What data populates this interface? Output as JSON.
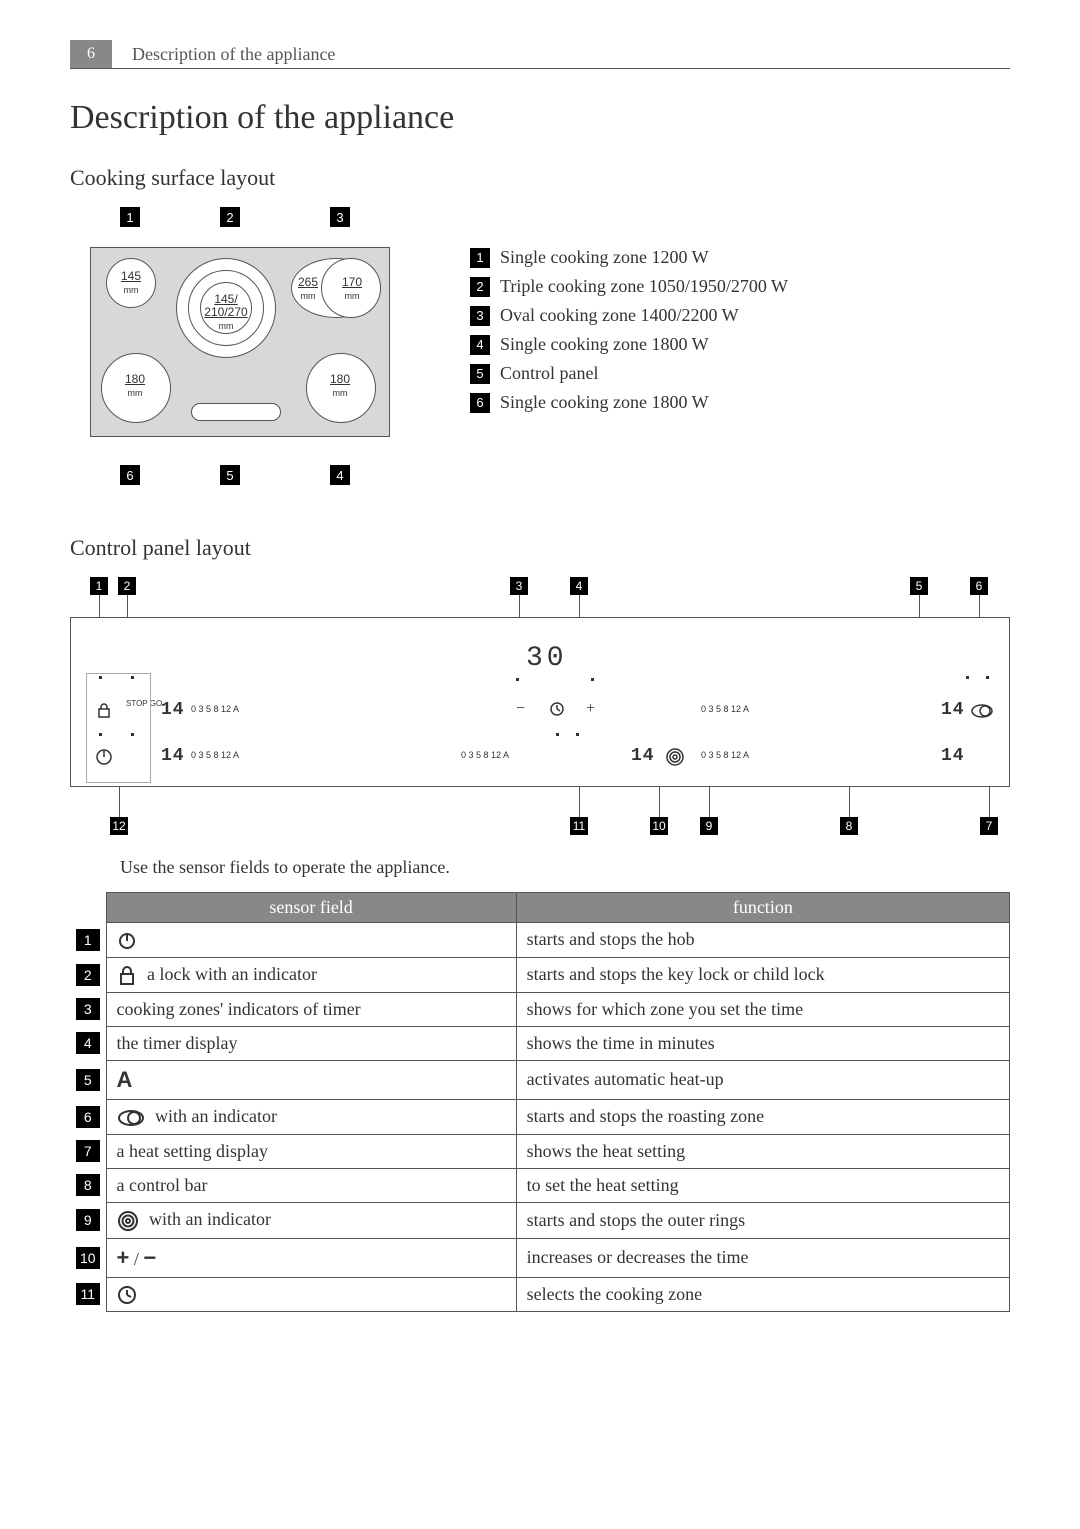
{
  "header": {
    "page_number": "6",
    "breadcrumb": "Description of the appliance"
  },
  "title": "Description of the appliance",
  "cooking_surface": {
    "heading": "Cooking surface layout",
    "zones": {
      "z1": {
        "dim": "145",
        "unit": "mm"
      },
      "z2": {
        "dim": "145/",
        "dim2": "210/270",
        "unit": "mm"
      },
      "z3a": {
        "dim": "265",
        "unit": "mm"
      },
      "z3b": {
        "dim": "170",
        "unit": "mm"
      },
      "z4": {
        "dim": "180",
        "unit": "mm"
      },
      "z6": {
        "dim": "180",
        "unit": "mm"
      }
    },
    "callouts": [
      "1",
      "2",
      "3",
      "4",
      "5",
      "6"
    ],
    "legend": [
      {
        "n": "1",
        "text": "Single cooking zone 1200 W"
      },
      {
        "n": "2",
        "text": "Triple cooking zone 1050/1950/2700 W"
      },
      {
        "n": "3",
        "text": "Oval cooking zone 1400/2200 W"
      },
      {
        "n": "4",
        "text": "Single cooking zone 1800 W"
      },
      {
        "n": "5",
        "text": "Control panel"
      },
      {
        "n": "6",
        "text": "Single cooking zone 1800 W"
      }
    ]
  },
  "control_panel": {
    "heading": "Control panel layout",
    "timer_display": "30",
    "scale": {
      "marks": "0   3   5     8        12    A"
    },
    "heat_display": "14",
    "stop_go": "STOP\nGO",
    "callouts_top": [
      "1",
      "2",
      "3",
      "4",
      "5",
      "6"
    ],
    "callouts_bottom": [
      "12",
      "11",
      "10",
      "9",
      "8",
      "7"
    ]
  },
  "instruction": "Use the sensor fields to operate the appliance.",
  "table": {
    "headers": {
      "sensor": "sensor field",
      "function": "function"
    },
    "rows": [
      {
        "n": "1",
        "icon": "power",
        "sensor": "",
        "function": "starts and stops the hob"
      },
      {
        "n": "2",
        "icon": "lock",
        "sensor": " a lock with an indicator",
        "function": "starts and stops the key lock or child lock"
      },
      {
        "n": "3",
        "icon": "",
        "sensor": "cooking zones' indicators of timer",
        "function": "shows for which zone you set the time"
      },
      {
        "n": "4",
        "icon": "",
        "sensor": "the timer display",
        "function": "shows the time in minutes"
      },
      {
        "n": "5",
        "icon": "A",
        "sensor": "",
        "function": "activates automatic heat-up"
      },
      {
        "n": "6",
        "icon": "oval",
        "sensor": " with an indicator",
        "function": "starts and stops the roasting zone"
      },
      {
        "n": "7",
        "icon": "",
        "sensor": "a heat setting display",
        "function": "shows the heat setting"
      },
      {
        "n": "8",
        "icon": "",
        "sensor": "a control bar",
        "function": "to set the heat setting"
      },
      {
        "n": "9",
        "icon": "rings",
        "sensor": " with an indicator",
        "function": "starts and stops the outer rings"
      },
      {
        "n": "10",
        "icon": "plusminus",
        "sensor": "",
        "function": "increases or decreases the time"
      },
      {
        "n": "11",
        "icon": "clock",
        "sensor": "",
        "function": "selects the cooking zone"
      }
    ]
  },
  "colors": {
    "header_bg": "#888888",
    "callout_bg": "#000000",
    "surface_bg": "#d8d8d8",
    "border": "#555555",
    "text": "#333333"
  }
}
